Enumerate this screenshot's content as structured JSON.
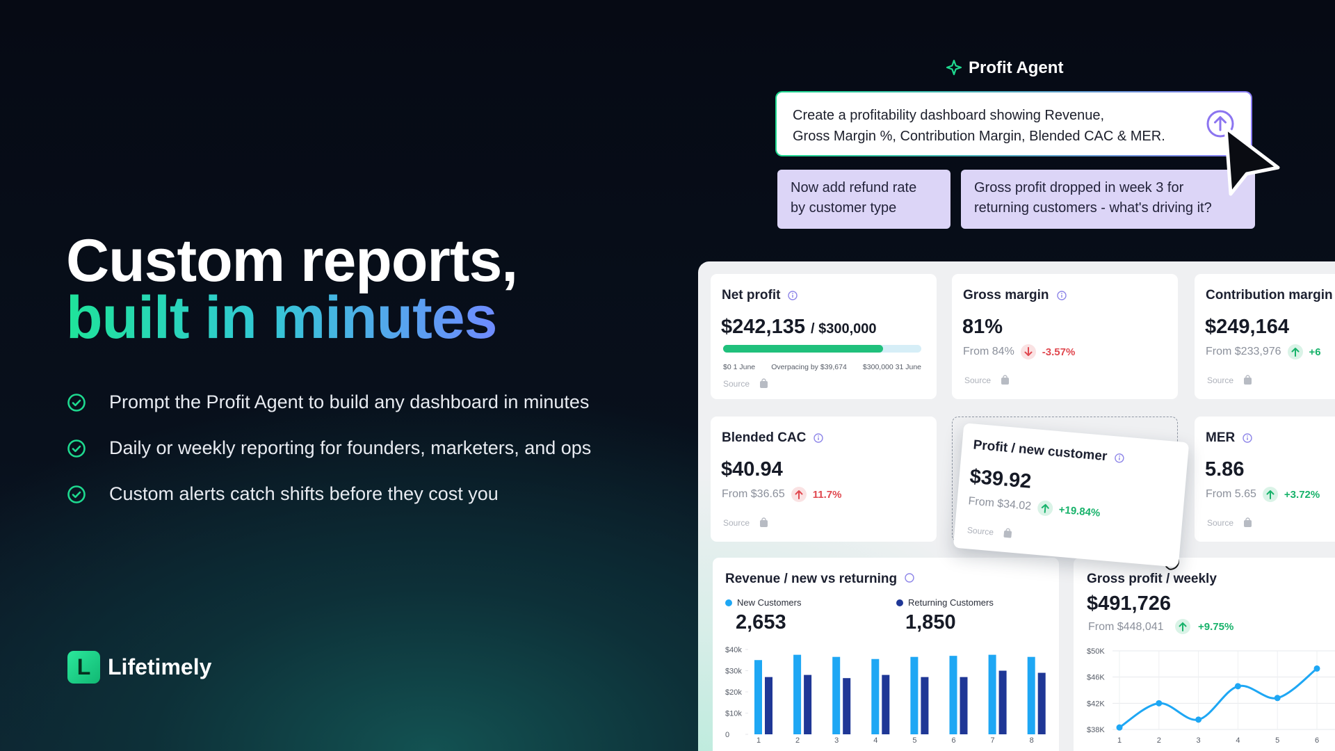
{
  "hero": {
    "title_line1": "Custom reports,",
    "title_line2": "built in minutes",
    "bullets": [
      "Prompt the Profit Agent to build any dashboard in minutes",
      "Daily or weekly reporting for founders, marketers, and ops",
      "Custom alerts catch shifts before they cost you"
    ]
  },
  "brand": {
    "logo_letter": "L",
    "name": "Lifetimely"
  },
  "agent": {
    "title": "Profit Agent",
    "prompt": [
      "Create a profitability dashboard showing Revenue,",
      "Gross Margin %, Contribution Margin, Blended CAC & MER."
    ],
    "suggestions": [
      [
        "Now add refund rate",
        "by customer type"
      ],
      [
        "Gross profit dropped in week 3 for",
        "returning customers - what's driving it?"
      ]
    ]
  },
  "dashboard": {
    "cards": [
      {
        "title": "Net profit",
        "value": "$242,135",
        "target": "/ $300,000",
        "progress": {
          "value": 242135,
          "max": 300000
        },
        "progress_labels": [
          "$0 1 June",
          "Overpacing by $39,674",
          "$300,000 31 June"
        ],
        "source": "Source"
      },
      {
        "title": "Gross margin",
        "value": "81%",
        "from": "From 84%",
        "change": "-3.57%",
        "trend": "down",
        "trend_color": "#e0484f",
        "source": "Source"
      },
      {
        "title": "Contribution margin",
        "value": "$249,164",
        "from": "From $233,976",
        "change": "+6",
        "trend": "up",
        "trend_color": "#17b26a",
        "source": "Source"
      },
      {
        "title": "Blended CAC",
        "value": "$40.94",
        "from": "From $36.65",
        "change": "11.7%",
        "trend": "up",
        "trend_color": "#e0484f",
        "source": "Source"
      },
      {
        "title": "Profit / new customer",
        "value": "$39.92",
        "from": "From $34.02",
        "change": "+19.84%",
        "trend": "up",
        "trend_color": "#17b26a",
        "source": "Source"
      },
      {
        "title": "MER",
        "value": "5.86",
        "from": "From 5.65",
        "change": "+3.72%",
        "trend": "up",
        "trend_color": "#17b26a",
        "source": "Source"
      }
    ]
  },
  "chart_data": [
    {
      "type": "bar",
      "title": "Revenue / new vs returning",
      "categories": [
        "1",
        "2",
        "3",
        "4",
        "5",
        "6",
        "7",
        "8"
      ],
      "series": [
        {
          "name": "New Customers",
          "color": "#1ea7f4",
          "total": "2,653",
          "values": [
            35000,
            37500,
            36500,
            35500,
            36500,
            37000,
            37500,
            36500
          ]
        },
        {
          "name": "Returning Customers",
          "color": "#1f3796",
          "total": "1,850",
          "values": [
            27000,
            28000,
            26500,
            28000,
            27000,
            27000,
            30000,
            29000
          ]
        }
      ],
      "ylim": [
        0,
        40000
      ],
      "yticks": [
        0,
        {
          "value": 10000,
          "label": "$10k"
        },
        {
          "value": 20000,
          "label": "$20k"
        },
        {
          "value": 30000,
          "label": "$30k"
        },
        {
          "value": 40000,
          "label": "$40k"
        }
      ]
    },
    {
      "type": "line",
      "title": "Gross profit / weekly",
      "value": "$491,726",
      "from": "From $448,041",
      "change": "+9.75%",
      "trend": "up",
      "trend_color": "#17b26a",
      "categories": [
        "1",
        "2",
        "3",
        "4",
        "5",
        "6"
      ],
      "values": [
        38300,
        42000,
        39500,
        44600,
        42800,
        47300
      ],
      "color": "#1ea7f4",
      "ylim": [
        38000,
        50000
      ],
      "yticks": [
        {
          "value": 38000,
          "label": "$38K"
        },
        {
          "value": 42000,
          "label": "$42K"
        },
        {
          "value": 46000,
          "label": "$46K"
        },
        {
          "value": 50000,
          "label": "$50K"
        }
      ],
      "grid": true
    }
  ]
}
